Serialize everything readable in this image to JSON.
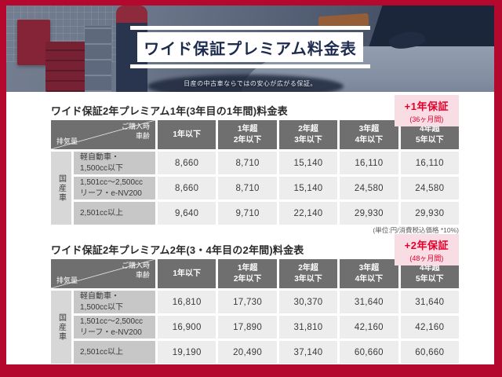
{
  "banner": {
    "title": "ワイド保証プレミアム料金表",
    "subtitle": "日産の中古車ならではの安心が広がる保証。"
  },
  "colors": {
    "frame_red": "#b5082e",
    "badge_pink": "#f9dde4",
    "badge_red": "#e4002b",
    "banner_navy": "#1d2b4f",
    "header_gray": "#6f6f6f",
    "label_gray": "#c7c7c7",
    "group_gray": "#d7d7d7",
    "cell_gray": "#ededed"
  },
  "tables": [
    {
      "title": "ワイド保証2年プレミアム1年(3年目の1年間)料金表",
      "badge": {
        "line1": "+1年保証",
        "line2": "(36ヶ月間)"
      },
      "corner": {
        "purchase1": "ご購入時",
        "purchase2": "車齢",
        "displacement": "排気量"
      },
      "columns": [
        {
          "l1": "1年以下",
          "l2": ""
        },
        {
          "l1": "1年超",
          "l2": "2年以下"
        },
        {
          "l1": "2年超",
          "l2": "3年以下"
        },
        {
          "l1": "3年超",
          "l2": "4年以下"
        },
        {
          "l1": "4年超",
          "l2": "5年以下"
        }
      ],
      "group": "国産車",
      "rows": [
        {
          "label1": "軽自動車・",
          "label2": "1,500cc以下",
          "values": [
            "8,660",
            "8,710",
            "15,140",
            "16,110",
            "16,110"
          ]
        },
        {
          "label1": "1,501cc〜2,500cc",
          "label2": "リーフ・e-NV200",
          "values": [
            "8,660",
            "8,710",
            "15,140",
            "24,580",
            "24,580"
          ]
        },
        {
          "label1": "2,501cc以上",
          "label2": "",
          "values": [
            "9,640",
            "9,710",
            "22,140",
            "29,930",
            "29,930"
          ]
        }
      ],
      "note": "(単位:円/消費税込価格 *10%)"
    },
    {
      "title": "ワイド保証2年プレミアム2年(3・4年目の2年間)料金表",
      "badge": {
        "line1": "+2年保証",
        "line2": "(48ヶ月間)"
      },
      "corner": {
        "purchase1": "ご購入時",
        "purchase2": "車齢",
        "displacement": "排気量"
      },
      "columns": [
        {
          "l1": "1年以下",
          "l2": ""
        },
        {
          "l1": "1年超",
          "l2": "2年以下"
        },
        {
          "l1": "2年超",
          "l2": "3年以下"
        },
        {
          "l1": "3年超",
          "l2": "4年以下"
        },
        {
          "l1": "4年超",
          "l2": "5年以下"
        }
      ],
      "group": "国産車",
      "rows": [
        {
          "label1": "軽自動車・",
          "label2": "1,500cc以下",
          "values": [
            "16,810",
            "17,730",
            "30,370",
            "31,640",
            "31,640"
          ]
        },
        {
          "label1": "1,501cc〜2,500cc",
          "label2": "リーフ・e-NV200",
          "values": [
            "16,900",
            "17,890",
            "31,810",
            "42,160",
            "42,160"
          ]
        },
        {
          "label1": "2,501cc以上",
          "label2": "",
          "values": [
            "19,190",
            "20,490",
            "37,140",
            "60,660",
            "60,660"
          ]
        }
      ]
    }
  ]
}
